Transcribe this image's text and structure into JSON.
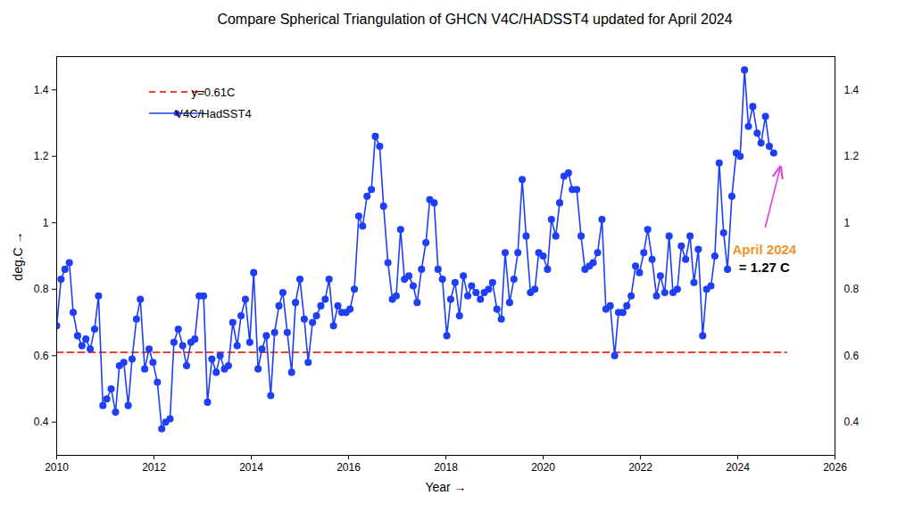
{
  "chart_data": {
    "type": "line",
    "title": "Compare Spherical Triangulation of GHCN V4C/HADSST4 updated for April 2024",
    "x_label": "Year",
    "y_label": "deg.C",
    "xlim": [
      2010,
      2026
    ],
    "xticks": [
      2010,
      2012,
      2014,
      2016,
      2018,
      2020,
      2022,
      2024,
      2026
    ],
    "ylim": [
      0.3,
      1.5
    ],
    "yticks": [
      0.4,
      0.6,
      0.8,
      1,
      1.2,
      1.4
    ],
    "grid": false,
    "legend": "upper left",
    "series": [
      {
        "name": "y=0.61C",
        "color": "#e8452c",
        "line_style": "dashed",
        "x": [
          2010,
          2025
        ],
        "values": [
          0.61,
          0.61
        ]
      },
      {
        "name": "V4C/HadSST4",
        "color": "#1f3ff5",
        "marker": "circle",
        "line_style": "solid",
        "x": [
          2010.0,
          2010.09,
          2010.17,
          2010.26,
          2010.34,
          2010.43,
          2010.52,
          2010.6,
          2010.69,
          2010.78,
          2010.86,
          2010.95,
          2011.03,
          2011.12,
          2011.21,
          2011.29,
          2011.38,
          2011.47,
          2011.55,
          2011.64,
          2011.72,
          2011.81,
          2011.9,
          2011.98,
          2012.07,
          2012.16,
          2012.24,
          2012.33,
          2012.41,
          2012.5,
          2012.59,
          2012.67,
          2012.76,
          2012.84,
          2012.93,
          2013.02,
          2013.1,
          2013.19,
          2013.28,
          2013.36,
          2013.45,
          2013.53,
          2013.62,
          2013.71,
          2013.79,
          2013.88,
          2013.97,
          2014.05,
          2014.14,
          2014.22,
          2014.31,
          2014.4,
          2014.48,
          2014.57,
          2014.65,
          2014.74,
          2014.83,
          2014.91,
          2015.0,
          2015.09,
          2015.17,
          2015.26,
          2015.34,
          2015.43,
          2015.52,
          2015.6,
          2015.69,
          2015.78,
          2015.86,
          2015.95,
          2016.03,
          2016.12,
          2016.21,
          2016.29,
          2016.38,
          2016.47,
          2016.55,
          2016.64,
          2016.72,
          2016.81,
          2016.9,
          2016.98,
          2017.07,
          2017.15,
          2017.24,
          2017.33,
          2017.41,
          2017.5,
          2017.59,
          2017.67,
          2017.76,
          2017.84,
          2017.93,
          2018.02,
          2018.1,
          2018.19,
          2018.28,
          2018.36,
          2018.45,
          2018.53,
          2018.62,
          2018.71,
          2018.79,
          2018.88,
          2018.96,
          2019.05,
          2019.14,
          2019.22,
          2019.31,
          2019.4,
          2019.48,
          2019.57,
          2019.65,
          2019.74,
          2019.83,
          2019.91,
          2020.0,
          2020.09,
          2020.17,
          2020.26,
          2020.34,
          2020.43,
          2020.52,
          2020.6,
          2020.69,
          2020.78,
          2020.86,
          2020.95,
          2021.03,
          2021.12,
          2021.21,
          2021.29,
          2021.38,
          2021.47,
          2021.55,
          2021.64,
          2021.72,
          2021.81,
          2021.9,
          2021.98,
          2022.07,
          2022.15,
          2022.24,
          2022.33,
          2022.41,
          2022.5,
          2022.59,
          2022.67,
          2022.76,
          2022.84,
          2022.93,
          2023.02,
          2023.1,
          2023.19,
          2023.28,
          2023.36,
          2023.45,
          2023.53,
          2023.62,
          2023.71,
          2023.79,
          2023.88,
          2023.97,
          2024.05,
          2024.14,
          2024.22,
          2024.31,
          2024.4,
          2024.48,
          2024.57,
          2024.65,
          2024.74
        ],
        "values": [
          0.69,
          0.83,
          0.86,
          0.88,
          0.73,
          0.66,
          0.63,
          0.65,
          0.62,
          0.68,
          0.78,
          0.45,
          0.47,
          0.5,
          0.43,
          0.57,
          0.58,
          0.45,
          0.59,
          0.71,
          0.77,
          0.56,
          0.62,
          0.58,
          0.52,
          0.38,
          0.4,
          0.41,
          0.64,
          0.68,
          0.63,
          0.57,
          0.64,
          0.65,
          0.78,
          0.78,
          0.46,
          0.59,
          0.55,
          0.6,
          0.56,
          0.57,
          0.7,
          0.63,
          0.72,
          0.77,
          0.64,
          0.85,
          0.56,
          0.62,
          0.66,
          0.48,
          0.67,
          0.75,
          0.79,
          0.67,
          0.55,
          0.76,
          0.83,
          0.71,
          0.58,
          0.7,
          0.72,
          0.75,
          0.77,
          0.83,
          0.69,
          0.75,
          0.73,
          0.73,
          0.74,
          0.8,
          1.02,
          0.99,
          1.08,
          1.1,
          1.26,
          1.23,
          1.05,
          0.88,
          0.77,
          0.78,
          0.98,
          0.83,
          0.84,
          0.81,
          0.76,
          0.86,
          0.94,
          1.07,
          1.06,
          0.86,
          0.83,
          0.66,
          0.77,
          0.82,
          0.72,
          0.84,
          0.78,
          0.81,
          0.79,
          0.77,
          0.79,
          0.8,
          0.82,
          0.74,
          0.71,
          0.91,
          0.76,
          0.83,
          0.91,
          1.13,
          0.96,
          0.79,
          0.8,
          0.91,
          0.9,
          0.86,
          1.01,
          0.96,
          1.06,
          1.14,
          1.15,
          1.1,
          1.1,
          0.96,
          0.86,
          0.87,
          0.88,
          0.91,
          1.01,
          0.74,
          0.75,
          0.6,
          0.73,
          0.73,
          0.75,
          0.78,
          0.87,
          0.85,
          0.91,
          0.98,
          0.89,
          0.78,
          0.84,
          0.79,
          0.96,
          0.79,
          0.8,
          0.93,
          0.89,
          0.96,
          0.82,
          0.92,
          0.66,
          0.8,
          0.81,
          0.9,
          1.18,
          0.97,
          0.86,
          1.08,
          1.21,
          1.2,
          1.46,
          1.29,
          1.35,
          1.27,
          1.24,
          1.32,
          1.23,
          1.21
        ]
      }
    ],
    "annotations": [
      {
        "text": "April 2024",
        "color": "#f0932b"
      },
      {
        "text": "= 1.27 C",
        "color": "#000000"
      }
    ]
  }
}
